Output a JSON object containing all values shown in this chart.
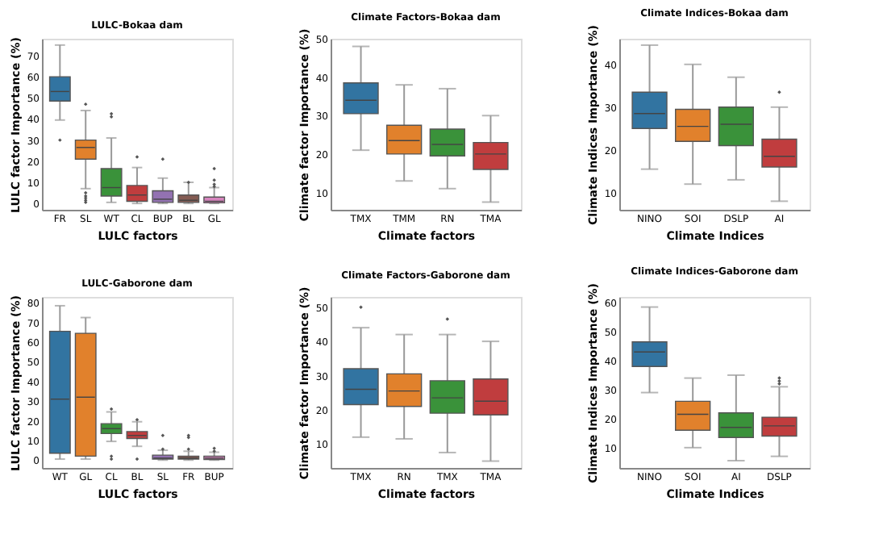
{
  "chart_data": [
    {
      "type": "box",
      "title": "LULC-Bokaa dam",
      "xlabel": "LULC factors",
      "ylabel": "LULC factor Importance (%)",
      "categories": [
        "FR",
        "SL",
        "WT",
        "CL",
        "BUP",
        "BL",
        "GL"
      ],
      "colors": [
        "#3274a1",
        "#e1812c",
        "#3a923a",
        "#c03d3e",
        "#9372b2",
        "#845b53",
        "#d684bd"
      ],
      "ylim": [
        -3,
        78
      ],
      "yticks": [
        0,
        10,
        20,
        30,
        40,
        50,
        60,
        70
      ],
      "boxes": [
        {
          "low": 39.5,
          "q1": 48.5,
          "median": 53,
          "q3": 60,
          "high": 75,
          "outliers": [
            30
          ]
        },
        {
          "low": 7,
          "q1": 21,
          "median": 26.5,
          "q3": 30,
          "high": 44,
          "outliers": [
            47,
            5,
            3.5,
            2.5,
            1.5,
            0.5
          ]
        },
        {
          "low": 0.5,
          "q1": 3.5,
          "median": 7.5,
          "q3": 16.5,
          "high": 31,
          "outliers": [
            41,
            42.5
          ]
        },
        {
          "low": 0,
          "q1": 1,
          "median": 4,
          "q3": 8.5,
          "high": 17,
          "outliers": [
            22
          ]
        },
        {
          "low": 0,
          "q1": 0.5,
          "median": 2,
          "q3": 6,
          "high": 12,
          "outliers": [
            21
          ]
        },
        {
          "low": 0,
          "q1": 0.5,
          "median": 1.5,
          "q3": 4,
          "high": 10,
          "outliers": [
            10
          ]
        },
        {
          "low": 0,
          "q1": 0.3,
          "median": 1,
          "q3": 3,
          "high": 7.5,
          "outliers": [
            8,
            9,
            11,
            16.5
          ]
        }
      ]
    },
    {
      "type": "box",
      "title": "Climate Factors-Bokaa dam",
      "xlabel": "Climate factors",
      "ylabel": "Climate factor Importance (%)",
      "categories": [
        "TMX",
        "TMM",
        "RN",
        "TMA"
      ],
      "colors": [
        "#3274a1",
        "#e1812c",
        "#3a923a",
        "#c03d3e"
      ],
      "ylim": [
        5.5,
        50
      ],
      "yticks": [
        10,
        20,
        30,
        40,
        50
      ],
      "boxes": [
        {
          "low": 21,
          "q1": 30.5,
          "median": 34,
          "q3": 38.5,
          "high": 48
        },
        {
          "low": 13,
          "q1": 20,
          "median": 23.5,
          "q3": 27.5,
          "high": 38
        },
        {
          "low": 11,
          "q1": 19.5,
          "median": 22.5,
          "q3": 26.5,
          "high": 37
        },
        {
          "low": 7.5,
          "q1": 16,
          "median": 20,
          "q3": 23,
          "high": 30
        }
      ]
    },
    {
      "type": "box",
      "title": "Climate Indices-Bokaa dam",
      "xlabel": "Climate Indices",
      "ylabel": "Climate Indices Importance (%)",
      "categories": [
        "NINO",
        "SOI",
        "DSLP",
        "AI"
      ],
      "colors": [
        "#3274a1",
        "#e1812c",
        "#3a923a",
        "#c03d3e"
      ],
      "ylim": [
        6,
        46
      ],
      "yticks": [
        10,
        20,
        30,
        40
      ],
      "boxes": [
        {
          "low": 15.5,
          "q1": 25,
          "median": 28.5,
          "q3": 33.5,
          "high": 44.5
        },
        {
          "low": 12,
          "q1": 22,
          "median": 25.5,
          "q3": 29.5,
          "high": 40
        },
        {
          "low": 13,
          "q1": 21,
          "median": 26,
          "q3": 30,
          "high": 37
        },
        {
          "low": 8,
          "q1": 16,
          "median": 18.5,
          "q3": 22.5,
          "high": 30,
          "outliers": [
            33.5
          ]
        }
      ]
    },
    {
      "type": "box",
      "title": "LULC-Gaborone dam",
      "xlabel": "LULC factors",
      "ylabel": "LULC factor Importance (%)",
      "categories": [
        "WT",
        "GL",
        "CL",
        "BL",
        "SL",
        "FR",
        "BUP"
      ],
      "colors": [
        "#3274a1",
        "#e1812c",
        "#3a923a",
        "#c03d3e",
        "#9372b2",
        "#845b53",
        "#d684bd"
      ],
      "ylim": [
        -4,
        83
      ],
      "yticks": [
        0,
        10,
        20,
        30,
        40,
        50,
        60,
        70,
        80
      ],
      "boxes": [
        {
          "low": 0.5,
          "q1": 3.5,
          "median": 31,
          "q3": 65.5,
          "high": 78.5
        },
        {
          "low": 0.5,
          "q1": 2,
          "median": 32,
          "q3": 64.5,
          "high": 72.5
        },
        {
          "low": 9.5,
          "q1": 13.5,
          "median": 16,
          "q3": 18.5,
          "high": 24.5,
          "outliers": [
            26,
            2,
            0.5
          ]
        },
        {
          "low": 7,
          "q1": 11,
          "median": 12.5,
          "q3": 14.5,
          "high": 19.5,
          "outliers": [
            20.5,
            0.5
          ]
        },
        {
          "low": 0,
          "q1": 0.5,
          "median": 1,
          "q3": 2.5,
          "high": 5,
          "outliers": [
            5.5,
            12.5
          ]
        },
        {
          "low": 0,
          "q1": 0.5,
          "median": 1,
          "q3": 2,
          "high": 4.5,
          "outliers": [
            5.5,
            11.5,
            12.5
          ]
        },
        {
          "low": 0,
          "q1": 0.3,
          "median": 1,
          "q3": 2,
          "high": 4,
          "outliers": [
            4.5,
            6
          ]
        }
      ]
    },
    {
      "type": "box",
      "title": "Climate Factors-Gaborone dam",
      "xlabel": "Climate factors",
      "ylabel": "Climate factor Importance (%)",
      "categories": [
        "TMX",
        "RN",
        "TMX",
        "TMA"
      ],
      "colors": [
        "#3274a1",
        "#e1812c",
        "#3a923a",
        "#c03d3e"
      ],
      "ylim": [
        3,
        53
      ],
      "yticks": [
        10,
        20,
        30,
        40,
        50
      ],
      "boxes": [
        {
          "low": 12,
          "q1": 21.5,
          "median": 26,
          "q3": 32,
          "high": 44,
          "outliers": [
            50
          ]
        },
        {
          "low": 11.5,
          "q1": 21,
          "median": 25.5,
          "q3": 30.5,
          "high": 42
        },
        {
          "low": 7.5,
          "q1": 19,
          "median": 23.5,
          "q3": 28.5,
          "high": 42,
          "outliers": [
            46.5
          ]
        },
        {
          "low": 5,
          "q1": 18.5,
          "median": 22.5,
          "q3": 29,
          "high": 40
        }
      ]
    },
    {
      "type": "box",
      "title": "Climate Indices-Gaborone dam",
      "xlabel": "Climate Indices",
      "ylabel": "Climate Indices Importance (%)",
      "categories": [
        "NINO",
        "SOI",
        "AI",
        "DSLP"
      ],
      "colors": [
        "#3274a1",
        "#e1812c",
        "#3a923a",
        "#c03d3e"
      ],
      "ylim": [
        3,
        62
      ],
      "yticks": [
        10,
        20,
        30,
        40,
        50,
        60
      ],
      "boxes": [
        {
          "low": 29,
          "q1": 38,
          "median": 43,
          "q3": 46.5,
          "high": 58.5
        },
        {
          "low": 10,
          "q1": 16,
          "median": 21.5,
          "q3": 26,
          "high": 34
        },
        {
          "low": 5.5,
          "q1": 13.5,
          "median": 17,
          "q3": 22,
          "high": 35
        },
        {
          "low": 7,
          "q1": 14,
          "median": 17.5,
          "q3": 20.5,
          "high": 31,
          "outliers": [
            32,
            33,
            34
          ]
        }
      ]
    }
  ]
}
